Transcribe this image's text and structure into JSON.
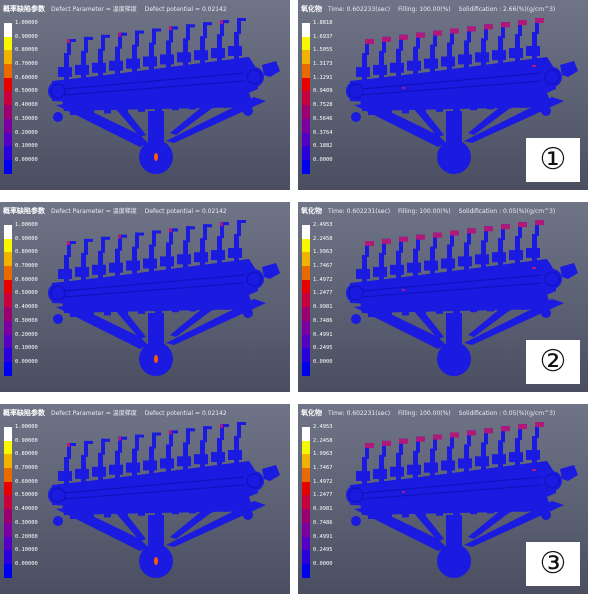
{
  "panels": [
    {
      "title": "概率缺陷参数",
      "items": [
        "Defect Parameter = 温度梯度",
        "Defect potential = 0.02142"
      ],
      "legend_values": [
        "1.00000",
        "0.90000",
        "0.80000",
        "0.70000",
        "0.60000",
        "0.50000",
        "0.40000",
        "0.30000",
        "0.20000",
        "0.10000",
        "0.00000"
      ],
      "defect": true,
      "marker": ""
    },
    {
      "title": "氧化物",
      "items": [
        "Time: 0.602233(sec)",
        "Filling: 100.00(%)",
        "Solidification : 2.66(%)(g/cm^3)"
      ],
      "legend_values": [
        "1.8818",
        "1.6937",
        "1.5055",
        "1.3173",
        "1.1291",
        "0.9409",
        "0.7528",
        "0.5646",
        "0.3764",
        "0.1882",
        "0.0000"
      ],
      "defect": false,
      "marker": "①"
    },
    {
      "title": "概率缺陷参数",
      "items": [
        "Defect Parameter = 温度梯度",
        "Defect potential = 0.02142"
      ],
      "legend_values": [
        "1.00000",
        "0.90000",
        "0.80000",
        "0.70000",
        "0.60000",
        "0.50000",
        "0.40000",
        "0.30000",
        "0.20000",
        "0.10000",
        "0.00000"
      ],
      "defect": true,
      "marker": ""
    },
    {
      "title": "氧化物",
      "items": [
        "Time: 0.602231(sec)",
        "Filling: 100.00(%)",
        "Solidification : 0.05(%)(g/cm^3)"
      ],
      "legend_values": [
        "2.4953",
        "2.2458",
        "1.9963",
        "1.7467",
        "1.4972",
        "1.2477",
        "0.9981",
        "0.7486",
        "0.4991",
        "0.2495",
        "0.0000"
      ],
      "defect": false,
      "marker": "②"
    },
    {
      "title": "概率缺陷参数",
      "items": [
        "Defect Parameter = 温度梯度",
        "Defect potential = 0.02142"
      ],
      "legend_values": [
        "1.00000",
        "0.90000",
        "0.80000",
        "0.70000",
        "0.60000",
        "0.50000",
        "0.40000",
        "0.30000",
        "0.20000",
        "0.10000",
        "0.00000"
      ],
      "defect": true,
      "marker": ""
    },
    {
      "title": "氧化物",
      "items": [
        "Time: 0.602231(sec)",
        "Filling: 100.00(%)",
        "Solidification : 0.05(%)(g/cm^3)"
      ],
      "legend_values": [
        "2.4953",
        "2.2458",
        "1.9963",
        "1.7467",
        "1.4972",
        "1.2477",
        "0.9981",
        "0.7486",
        "0.4991",
        "0.2495",
        "0.0000"
      ],
      "defect": false,
      "marker": "③"
    }
  ],
  "legend_colors": [
    "#ffffff",
    "#f7f700",
    "#f1b300",
    "#ea6a00",
    "#e60000",
    "#c8003c",
    "#9a0070",
    "#7a00a0",
    "#5600c4",
    "#2a00dc",
    "#0000f0"
  ],
  "colors": {
    "casting": "#1a1ae0",
    "casting_dark": "#1010b8",
    "oxide_tip": "#b0187a",
    "defect_hot": "#ff5a00"
  }
}
